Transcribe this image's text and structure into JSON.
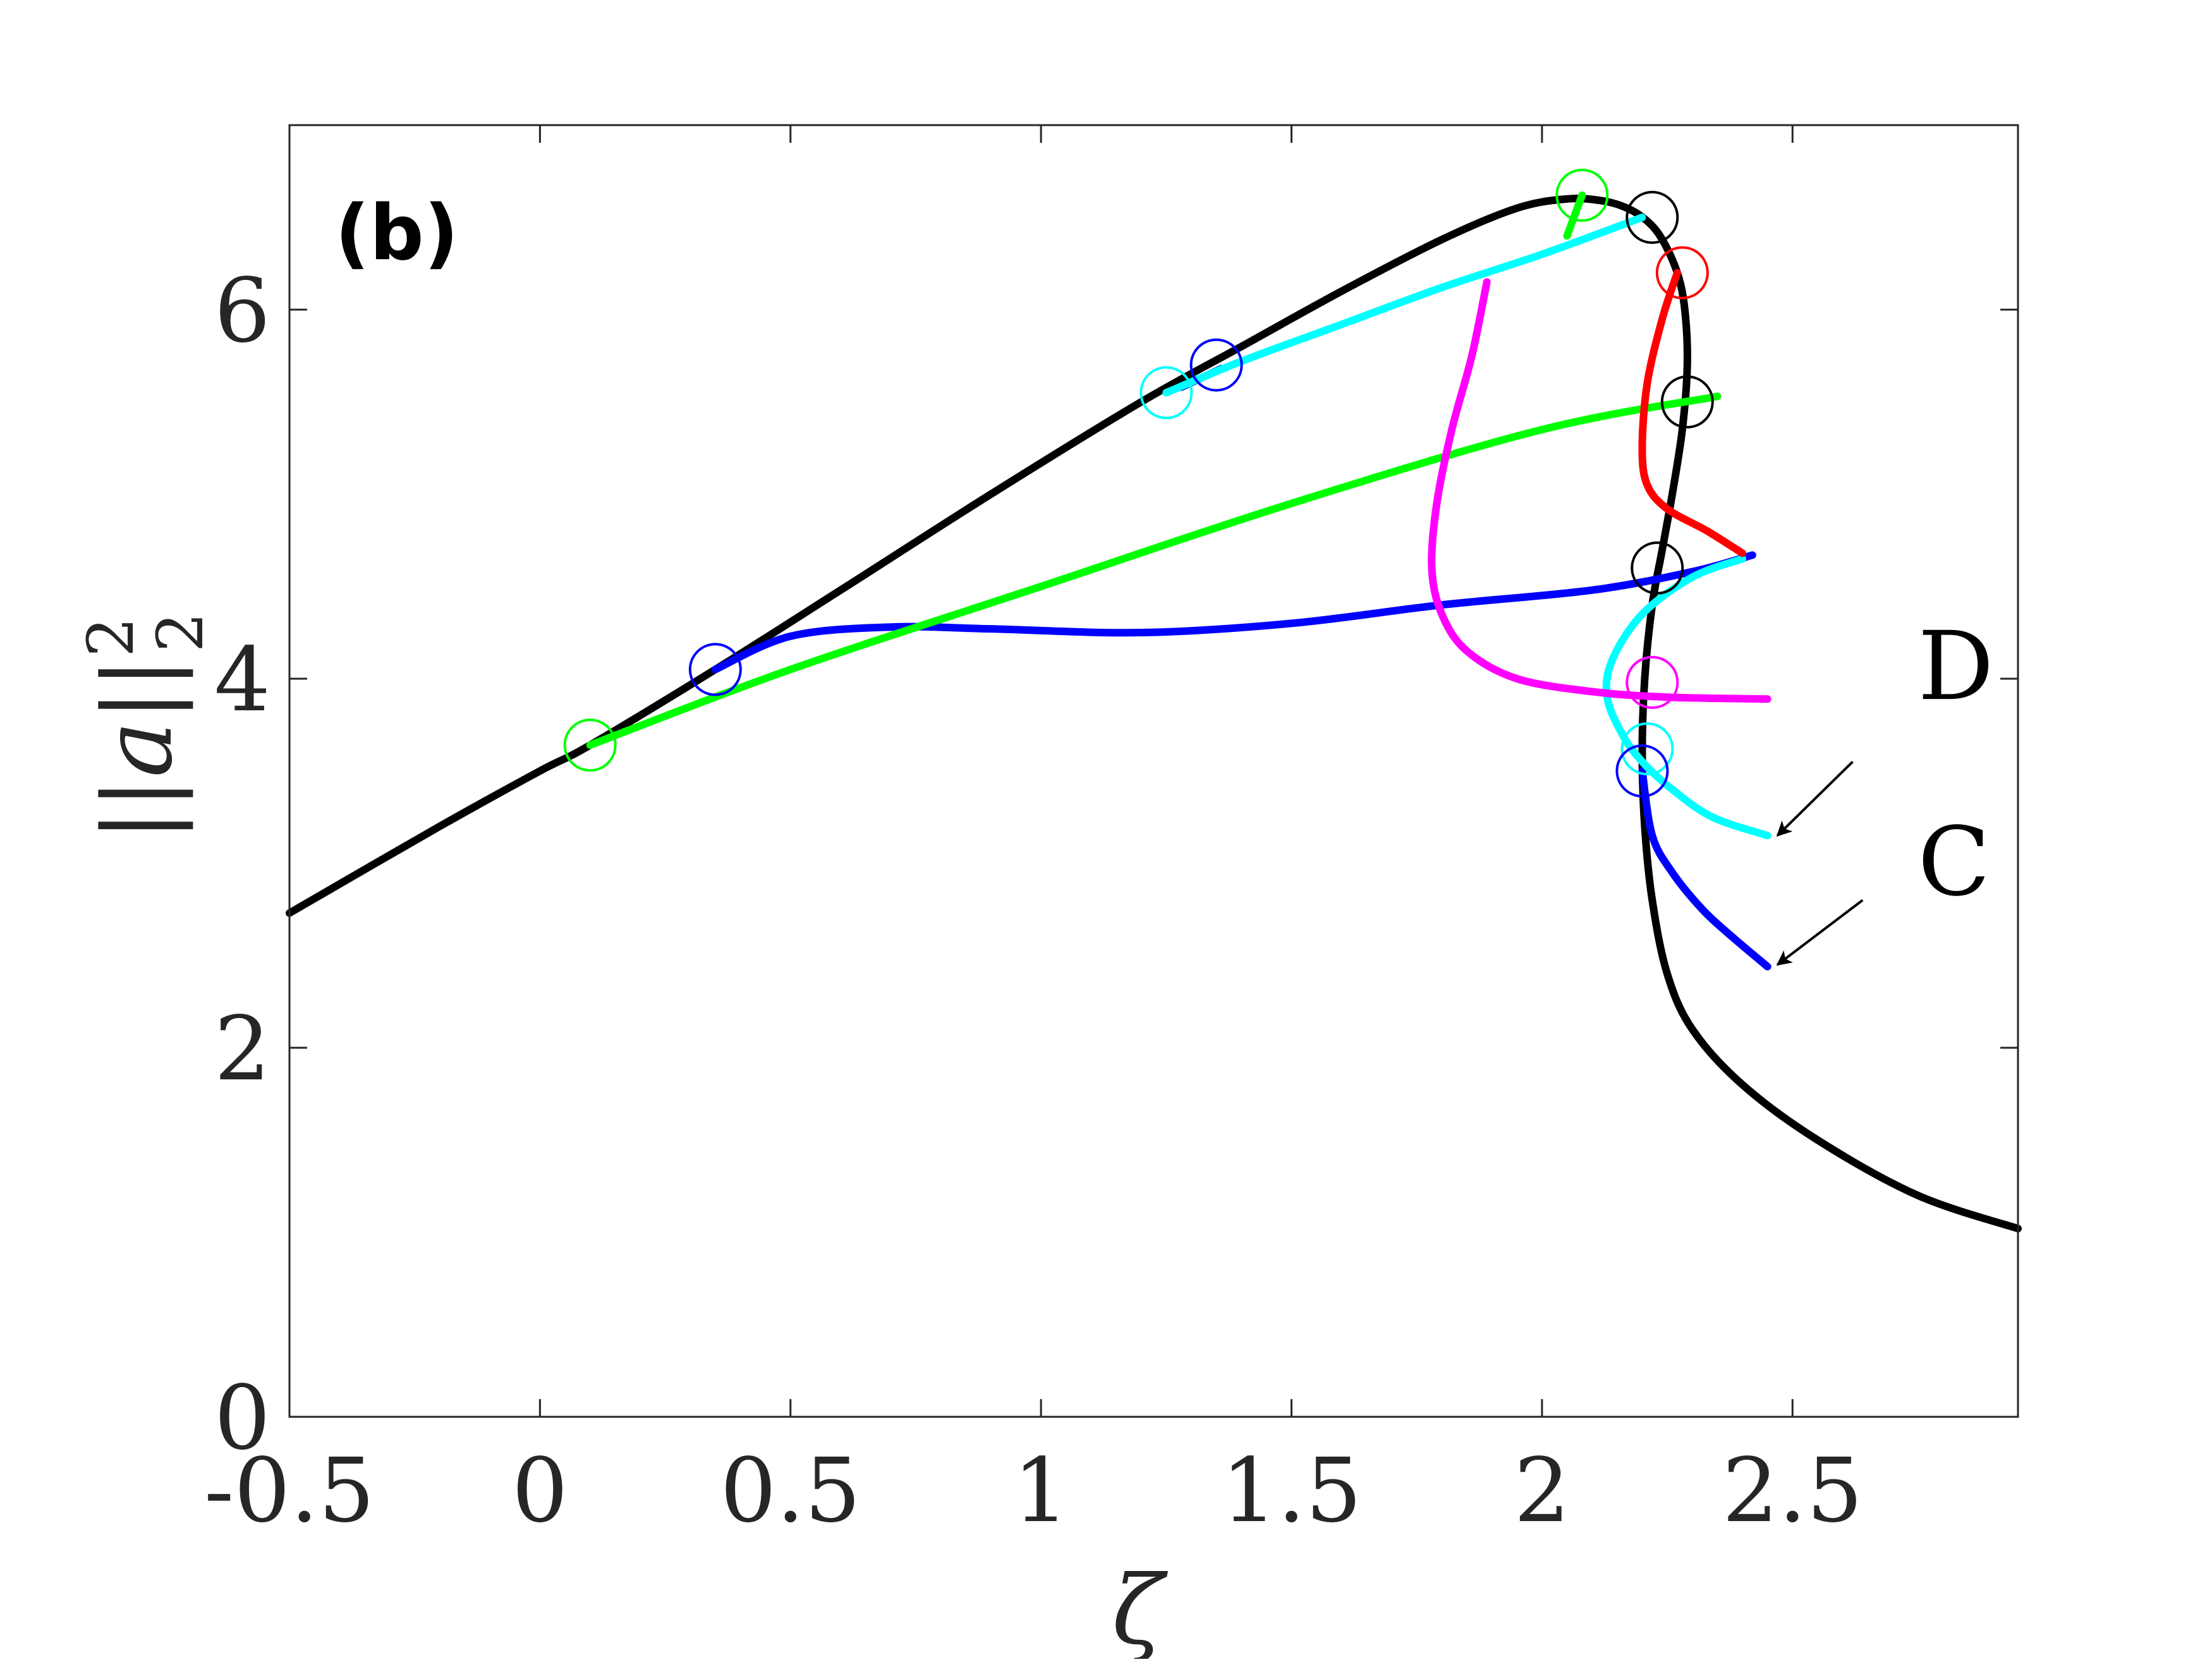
{
  "chart_data": {
    "type": "line",
    "panel_label": "(b)",
    "xlabel": "ζ",
    "ylabel_main": "||a||",
    "ylabel_sup": "2",
    "ylabel_sub": "2",
    "xlim": [
      -0.5,
      2.95
    ],
    "ylim": [
      0,
      7
    ],
    "xticks": [
      -0.5,
      0,
      0.5,
      1,
      1.5,
      2,
      2.5
    ],
    "xtick_labels": [
      "-0.5",
      "0",
      "0.5",
      "1",
      "1.5",
      "2",
      "2.5"
    ],
    "yticks": [
      0,
      2,
      4,
      6
    ],
    "ytick_labels": [
      "0",
      "2",
      "4",
      "6"
    ],
    "grid": false,
    "colors": {
      "black": "#000000",
      "blue": "#0000ff",
      "green": "#00ff00",
      "cyan": "#00ffff",
      "magenta": "#ff00ff",
      "red": "#ff0000"
    },
    "series": [
      {
        "color": "black",
        "x": [
          -0.5,
          -0.2,
          0.0,
          0.1,
          0.35,
          0.6,
          0.9,
          1.2,
          1.4,
          1.6,
          1.8,
          1.95,
          2.05,
          2.12,
          2.17,
          2.21,
          2.24,
          2.27,
          2.285,
          2.29,
          2.28,
          2.26,
          2.24,
          2.22,
          2.205,
          2.2,
          2.205,
          2.22,
          2.25,
          2.3,
          2.4,
          2.55,
          2.75,
          2.95
        ],
        "y": [
          2.73,
          3.2,
          3.5,
          3.64,
          4.05,
          4.48,
          5.0,
          5.5,
          5.8,
          6.1,
          6.38,
          6.55,
          6.6,
          6.59,
          6.55,
          6.48,
          6.38,
          6.2,
          6.0,
          5.7,
          5.35,
          5.0,
          4.7,
          4.4,
          4.0,
          3.6,
          3.2,
          2.8,
          2.4,
          2.1,
          1.8,
          1.5,
          1.2,
          1.02
        ]
      },
      {
        "color": "blue",
        "x": [
          0.35,
          0.5,
          0.7,
          0.9,
          1.2,
          1.5,
          1.8,
          2.1,
          2.3,
          2.42
        ],
        "y": [
          4.05,
          4.23,
          4.28,
          4.27,
          4.25,
          4.3,
          4.4,
          4.48,
          4.58,
          4.67
        ]
      },
      {
        "color": "blue",
        "x": [
          1.28,
          1.36
        ],
        "y": [
          5.58,
          5.68
        ]
      },
      {
        "color": "blue",
        "x": [
          2.2,
          2.22,
          2.26,
          2.32,
          2.38,
          2.45
        ],
        "y": [
          3.5,
          3.15,
          2.95,
          2.75,
          2.6,
          2.44
        ]
      },
      {
        "color": "green",
        "x": [
          0.1,
          0.5,
          1.0,
          1.5,
          2.0,
          2.35
        ],
        "y": [
          3.64,
          4.05,
          4.5,
          4.95,
          5.35,
          5.53
        ]
      },
      {
        "color": "green",
        "x": [
          2.05,
          2.08
        ],
        "y": [
          6.4,
          6.62
        ]
      },
      {
        "color": "cyan",
        "x": [
          1.25,
          1.4,
          1.6,
          1.8,
          2.0,
          2.2
        ],
        "y": [
          5.55,
          5.72,
          5.92,
          6.12,
          6.3,
          6.5
        ]
      },
      {
        "color": "cyan",
        "x": [
          2.4,
          2.3,
          2.2,
          2.14,
          2.13,
          2.16,
          2.2,
          2.26,
          2.34,
          2.45
        ],
        "y": [
          4.65,
          4.55,
          4.35,
          4.1,
          3.9,
          3.7,
          3.55,
          3.4,
          3.25,
          3.15
        ]
      },
      {
        "color": "magenta",
        "x": [
          1.89,
          1.86,
          1.82,
          1.79,
          1.78,
          1.8,
          1.85,
          1.95,
          2.1,
          2.25,
          2.45
        ],
        "y": [
          6.15,
          5.75,
          5.35,
          4.95,
          4.6,
          4.35,
          4.15,
          4.0,
          3.93,
          3.9,
          3.89
        ]
      },
      {
        "color": "red",
        "x": [
          2.27,
          2.24,
          2.21,
          2.2,
          2.21,
          2.25,
          2.33,
          2.4
        ],
        "y": [
          6.2,
          5.95,
          5.6,
          5.25,
          5.05,
          4.92,
          4.8,
          4.68
        ]
      }
    ],
    "markers": [
      {
        "color": "green",
        "x": 0.1,
        "y": 3.64
      },
      {
        "color": "blue",
        "x": 0.35,
        "y": 4.05
      },
      {
        "color": "cyan",
        "x": 1.25,
        "y": 5.55
      },
      {
        "color": "blue",
        "x": 1.35,
        "y": 5.7
      },
      {
        "color": "green",
        "x": 2.08,
        "y": 6.62
      },
      {
        "color": "black",
        "x": 2.22,
        "y": 6.5
      },
      {
        "color": "red",
        "x": 2.28,
        "y": 6.2
      },
      {
        "color": "black",
        "x": 2.29,
        "y": 5.5
      },
      {
        "color": "black",
        "x": 2.23,
        "y": 4.6
      },
      {
        "color": "magenta",
        "x": 2.22,
        "y": 3.98
      },
      {
        "color": "cyan",
        "x": 2.21,
        "y": 3.62
      },
      {
        "color": "blue",
        "x": 2.2,
        "y": 3.5
      }
    ],
    "annotations": [
      {
        "text": "D",
        "x": 2.75,
        "y": 3.89,
        "arrow_from": [
          2.62,
          3.55
        ],
        "arrow_to": [
          2.47,
          3.15
        ]
      },
      {
        "text": "C",
        "x": 2.75,
        "y": 2.83,
        "arrow_from": [
          2.64,
          2.8
        ],
        "arrow_to": [
          2.47,
          2.45
        ]
      }
    ]
  }
}
